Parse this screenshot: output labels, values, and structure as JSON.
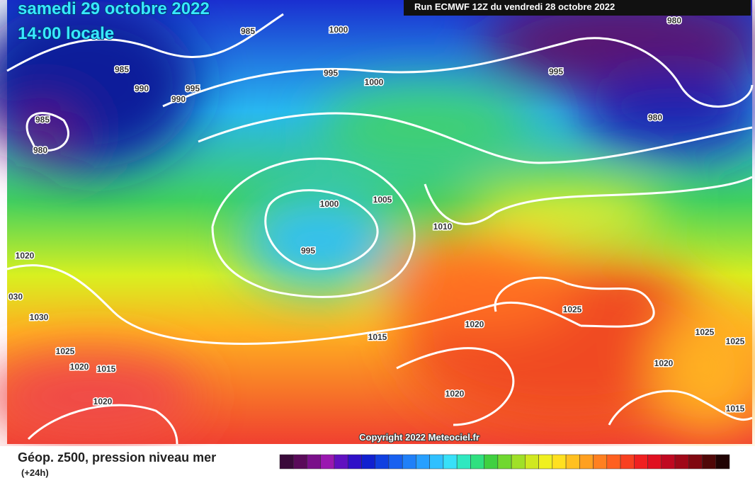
{
  "header": {
    "date": "samedi 29 octobre 2022",
    "time": "14:00 locale",
    "run": "Run ECMWF 12Z du vendredi 28 octobre 2022"
  },
  "isobars": [
    985,
    1000,
    980,
    985,
    995,
    1000,
    995,
    990,
    995,
    990,
    985,
    980,
    980,
    1000,
    1005,
    1010,
    995,
    1020,
    "030",
    1030,
    1025,
    1020,
    1015,
    1025,
    1025,
    1025,
    1020,
    1015,
    1020,
    1020,
    1020,
    1015
  ],
  "copyright": "Copyright 2022 Meteociel.fr",
  "legend": {
    "title": "Géop. z500, pression niveau mer",
    "subtitle": "(+24h)"
  }
}
